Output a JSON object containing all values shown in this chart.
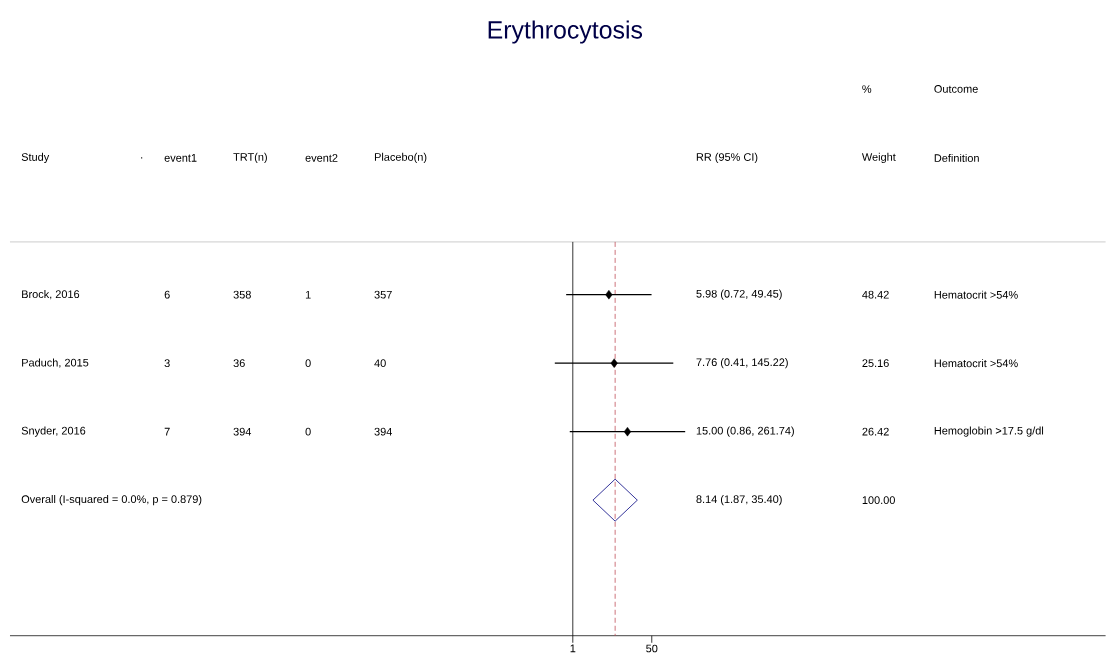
{
  "chart_data": {
    "type": "scatter",
    "orientation": "horizontal",
    "title": "Erythrocytosis",
    "categories": [
      "Brock, 2016",
      "Paduch, 2015",
      "Snyder, 2016",
      "Overall  (I-squared = 0.0%, p = 0.879)"
    ],
    "series": [
      {
        "color": "#000000",
        "marker": "diamond",
        "values": [
          5.98,
          7.76,
          15.0,
          null
        ],
        "errors": [
          [
            0.72,
            49.45
          ],
          [
            0.41,
            145.22
          ],
          [
            0.86,
            261.74
          ],
          null
        ]
      },
      {
        "color": "#000080",
        "marker": "diamond",
        "values": [
          null,
          null,
          null,
          8.14
        ]
      }
    ],
    "log": "x",
    "xlim": [
      7.8e-13,
      290000000000.0
    ],
    "xticks": [
      1,
      50
    ],
    "grid": false,
    "ref_lines": [
      {
        "axis": "x",
        "value": 1,
        "color": "#000000",
        "line_style": "solid"
      },
      {
        "axis": "x",
        "value": 8.14,
        "color": "#c0505a",
        "line_style": "dashed"
      }
    ],
    "annotations": [
      "%",
      "Outcome",
      "Study",
      ".",
      "event1",
      "TRT(n)",
      "event2",
      "Placebo(n)",
      "RR (95% CI)",
      "Weight",
      "Definition",
      "6",
      "358",
      "1",
      "357",
      "5.98 (0.72, 49.45)",
      "48.42",
      "Hematocrit >54%",
      "3",
      "36",
      "0",
      "40",
      "7.76 (0.41, 145.22)",
      "25.16",
      "Hematocrit >54%",
      "7",
      "394",
      "0",
      "394",
      "15.00 (0.86, 261.74)",
      "26.42",
      "Hemoglobin >17.5 g/dl",
      "8.14 (1.87, 35.40)",
      "100.00"
    ]
  }
}
